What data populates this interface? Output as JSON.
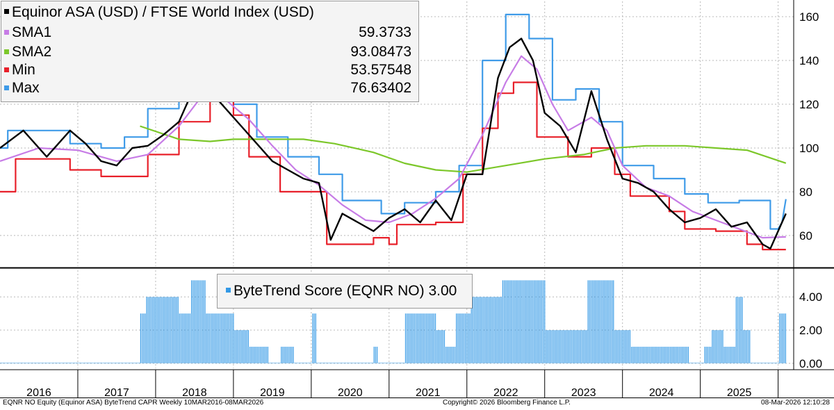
{
  "legend": {
    "title": "Equinor ASA (USD) / FTSE World Index (USD)",
    "items": [
      {
        "label": "SMA1",
        "value": "59.3733",
        "color": "#c77ce6"
      },
      {
        "label": "SMA2",
        "value": "93.08473",
        "color": "#7cc72a"
      },
      {
        "label": "Min",
        "value": "53.57548",
        "color": "#e8202a"
      },
      {
        "label": "Max",
        "value": "76.63402",
        "color": "#3f9be8"
      }
    ]
  },
  "score_legend": {
    "label": "ByteTrend Score (EQNR NO)",
    "value": "3.00",
    "color": "#3399e6"
  },
  "footer": {
    "left": "EQNR NO Equity (Equinor ASA) ByteTrend CAPR Weekly 10MAR2016-08MAR2026",
    "center": "Copyright© 2026 Bloomberg Finance L.P.",
    "right": "08-Mar-2026 12:10:28"
  },
  "chart_data": [
    {
      "type": "line",
      "title": "Equinor ASA (USD) / FTSE World Index (USD)",
      "x_axis": {
        "ticks": [
          "2016",
          "2017",
          "2018",
          "2019",
          "2020",
          "2021",
          "2022",
          "2023",
          "2024",
          "2025"
        ],
        "range": [
          2016.0,
          2026.2
        ]
      },
      "y_axis": {
        "side": "right",
        "ticks": [
          60,
          80,
          100,
          120,
          140,
          160
        ],
        "range": [
          46,
          167
        ]
      },
      "grid": true,
      "legend_position": "top-left",
      "series": [
        {
          "name": "Equinor ASA (USD) / FTSE World Index (USD)",
          "color": "#000000",
          "x": [
            2016.0,
            2016.3,
            2016.6,
            2016.9,
            2017.1,
            2017.3,
            2017.5,
            2017.7,
            2017.9,
            2018.1,
            2018.3,
            2018.5,
            2018.7,
            2018.9,
            2019.1,
            2019.3,
            2019.5,
            2019.7,
            2019.9,
            2020.1,
            2020.25,
            2020.4,
            2020.6,
            2020.8,
            2021.0,
            2021.2,
            2021.4,
            2021.6,
            2021.8,
            2022.0,
            2022.2,
            2022.4,
            2022.55,
            2022.7,
            2022.85,
            2023.0,
            2023.2,
            2023.4,
            2023.6,
            2023.8,
            2024.0,
            2024.2,
            2024.4,
            2024.6,
            2024.8,
            2025.0,
            2025.2,
            2025.4,
            2025.6,
            2025.8,
            2025.9,
            2026.0,
            2026.1
          ],
          "y": [
            100,
            108,
            96,
            108,
            102,
            94,
            92,
            100,
            101,
            106,
            112,
            128,
            126,
            118,
            110,
            102,
            94,
            90,
            86,
            84,
            58,
            70,
            66,
            62,
            68,
            72,
            66,
            76,
            67,
            88,
            88,
            132,
            146,
            150,
            140,
            116,
            110,
            98,
            126,
            104,
            86,
            84,
            80,
            72,
            66,
            68,
            72,
            64,
            66,
            56,
            54,
            62,
            70
          ]
        },
        {
          "name": "SMA1",
          "color": "#c77ce6",
          "x": [
            2016.0,
            2016.5,
            2017.0,
            2017.5,
            2017.9,
            2018.3,
            2018.6,
            2018.9,
            2019.2,
            2019.5,
            2019.8,
            2020.1,
            2020.4,
            2020.7,
            2021.0,
            2021.3,
            2021.6,
            2021.9,
            2022.2,
            2022.5,
            2022.7,
            2022.9,
            2023.1,
            2023.3,
            2023.6,
            2023.8,
            2024.0,
            2024.3,
            2024.6,
            2024.9,
            2025.2,
            2025.5,
            2025.8,
            2026.1
          ],
          "y": [
            94,
            100,
            99,
            94,
            97,
            110,
            124,
            122,
            113,
            101,
            90,
            83,
            74,
            67,
            66,
            70,
            77,
            86,
            106,
            130,
            142,
            136,
            120,
            108,
            114,
            108,
            92,
            82,
            78,
            71,
            67,
            63,
            59,
            59.37
          ]
        },
        {
          "name": "SMA2",
          "color": "#7cc72a",
          "x": [
            2017.8,
            2018.3,
            2018.7,
            2019.0,
            2019.5,
            2019.9,
            2020.3,
            2020.8,
            2021.2,
            2021.6,
            2022.0,
            2022.5,
            2023.0,
            2023.5,
            2023.9,
            2024.3,
            2024.8,
            2025.2,
            2025.6,
            2026.1
          ],
          "y": [
            110,
            104,
            103,
            104,
            104,
            104,
            102,
            98,
            93,
            90,
            89,
            92,
            95,
            97,
            100,
            101,
            101,
            100,
            99,
            93.08
          ]
        },
        {
          "name": "Min",
          "color": "#e8202a",
          "x": [
            2016.0,
            2016.2,
            2016.2,
            2016.9,
            2016.9,
            2017.3,
            2017.3,
            2017.9,
            2017.9,
            2018.3,
            2018.3,
            2018.7,
            2018.7,
            2019.0,
            2019.0,
            2019.2,
            2019.2,
            2019.6,
            2019.6,
            2020.2,
            2020.2,
            2020.8,
            2020.8,
            2021.0,
            2021.0,
            2021.1,
            2021.1,
            2021.6,
            2021.6,
            2021.95,
            2021.95,
            2022.2,
            2022.2,
            2022.4,
            2022.4,
            2022.6,
            2022.6,
            2022.9,
            2022.9,
            2023.3,
            2023.3,
            2023.6,
            2023.6,
            2023.9,
            2023.9,
            2024.1,
            2024.1,
            2024.6,
            2024.6,
            2024.8,
            2024.8,
            2025.2,
            2025.2,
            2025.6,
            2025.6,
            2025.8,
            2025.8,
            2026.1
          ],
          "y": [
            80,
            80,
            95,
            95,
            90,
            90,
            87,
            87,
            97,
            97,
            112,
            112,
            122,
            122,
            115,
            115,
            96,
            96,
            80,
            80,
            56,
            56,
            59,
            59,
            56,
            56,
            65,
            65,
            66,
            66,
            88,
            88,
            109,
            109,
            125,
            125,
            130,
            130,
            105,
            105,
            96,
            96,
            100,
            100,
            88,
            88,
            78,
            78,
            71,
            71,
            63,
            63,
            62,
            62,
            56,
            56,
            53.58,
            53.58
          ]
        },
        {
          "name": "Max",
          "color": "#3f9be8",
          "x": [
            2016.0,
            2016.1,
            2016.1,
            2016.9,
            2016.9,
            2017.3,
            2017.3,
            2017.6,
            2017.6,
            2017.9,
            2017.9,
            2018.3,
            2018.3,
            2018.7,
            2018.7,
            2019.0,
            2019.0,
            2019.3,
            2019.3,
            2019.7,
            2019.7,
            2020.1,
            2020.1,
            2020.4,
            2020.4,
            2020.9,
            2020.9,
            2021.2,
            2021.2,
            2021.6,
            2021.6,
            2021.9,
            2021.9,
            2022.2,
            2022.2,
            2022.5,
            2022.5,
            2022.8,
            2022.8,
            2023.1,
            2023.1,
            2023.4,
            2023.4,
            2023.7,
            2023.7,
            2024.0,
            2024.0,
            2024.4,
            2024.4,
            2024.8,
            2024.8,
            2025.1,
            2025.1,
            2025.5,
            2025.5,
            2025.9,
            2025.9,
            2026.0,
            2026.05,
            2026.1
          ],
          "y": [
            100,
            100,
            108,
            108,
            102,
            102,
            100,
            100,
            105,
            105,
            118,
            118,
            131,
            131,
            134,
            134,
            120,
            120,
            105,
            105,
            96,
            96,
            88,
            88,
            76,
            76,
            70,
            70,
            75,
            75,
            80,
            80,
            92,
            92,
            140,
            140,
            161,
            161,
            150,
            150,
            122,
            122,
            127,
            127,
            112,
            112,
            92,
            92,
            86,
            86,
            79,
            79,
            75,
            75,
            76,
            76,
            63,
            63,
            66,
            76.63
          ]
        }
      ]
    },
    {
      "type": "bar",
      "title": "ByteTrend Score (EQNR NO)",
      "x_axis": {
        "ticks": [
          "2016",
          "2017",
          "2018",
          "2019",
          "2020",
          "2021",
          "2022",
          "2023",
          "2024",
          "2025"
        ],
        "range": [
          2016.0,
          2026.2
        ]
      },
      "y_axis": {
        "side": "right",
        "ticks": [
          "0.00",
          "2.00",
          "4.00"
        ],
        "range": [
          -0.3,
          5.6
        ]
      },
      "grid": true,
      "legend_position": "top-center",
      "series": [
        {
          "name": "ByteTrend Score (EQNR NO)",
          "color": "#3399e6",
          "segments": [
            {
              "start": 2016.0,
              "end": 2017.8,
              "value": 0
            },
            {
              "start": 2017.8,
              "end": 2017.87,
              "value": 3
            },
            {
              "start": 2017.87,
              "end": 2018.3,
              "value": 4
            },
            {
              "start": 2018.3,
              "end": 2018.45,
              "value": 3
            },
            {
              "start": 2018.45,
              "end": 2018.65,
              "value": 5
            },
            {
              "start": 2018.65,
              "end": 2019.0,
              "value": 3
            },
            {
              "start": 2019.0,
              "end": 2019.2,
              "value": 2
            },
            {
              "start": 2019.2,
              "end": 2019.45,
              "value": 1
            },
            {
              "start": 2019.45,
              "end": 2019.6,
              "value": 0
            },
            {
              "start": 2019.6,
              "end": 2019.78,
              "value": 1
            },
            {
              "start": 2019.78,
              "end": 2020.0,
              "value": 0
            },
            {
              "start": 2020.0,
              "end": 2020.06,
              "value": 3
            },
            {
              "start": 2020.06,
              "end": 2020.8,
              "value": 0
            },
            {
              "start": 2020.8,
              "end": 2020.86,
              "value": 1
            },
            {
              "start": 2020.86,
              "end": 2021.2,
              "value": 0
            },
            {
              "start": 2021.2,
              "end": 2021.6,
              "value": 3
            },
            {
              "start": 2021.6,
              "end": 2021.72,
              "value": 2
            },
            {
              "start": 2021.72,
              "end": 2021.85,
              "value": 1
            },
            {
              "start": 2021.85,
              "end": 2022.05,
              "value": 3
            },
            {
              "start": 2022.05,
              "end": 2022.45,
              "value": 4
            },
            {
              "start": 2022.45,
              "end": 2023.0,
              "value": 5
            },
            {
              "start": 2023.0,
              "end": 2023.55,
              "value": 2
            },
            {
              "start": 2023.55,
              "end": 2023.9,
              "value": 5
            },
            {
              "start": 2023.9,
              "end": 2024.1,
              "value": 2
            },
            {
              "start": 2024.1,
              "end": 2024.85,
              "value": 1
            },
            {
              "start": 2024.85,
              "end": 2025.05,
              "value": 0
            },
            {
              "start": 2025.05,
              "end": 2025.15,
              "value": 1
            },
            {
              "start": 2025.15,
              "end": 2025.3,
              "value": 2
            },
            {
              "start": 2025.3,
              "end": 2025.45,
              "value": 1
            },
            {
              "start": 2025.45,
              "end": 2025.55,
              "value": 4
            },
            {
              "start": 2025.55,
              "end": 2025.65,
              "value": 2
            },
            {
              "start": 2025.65,
              "end": 2026.0,
              "value": 0
            },
            {
              "start": 2026.0,
              "end": 2026.1,
              "value": 3
            }
          ]
        }
      ]
    }
  ]
}
